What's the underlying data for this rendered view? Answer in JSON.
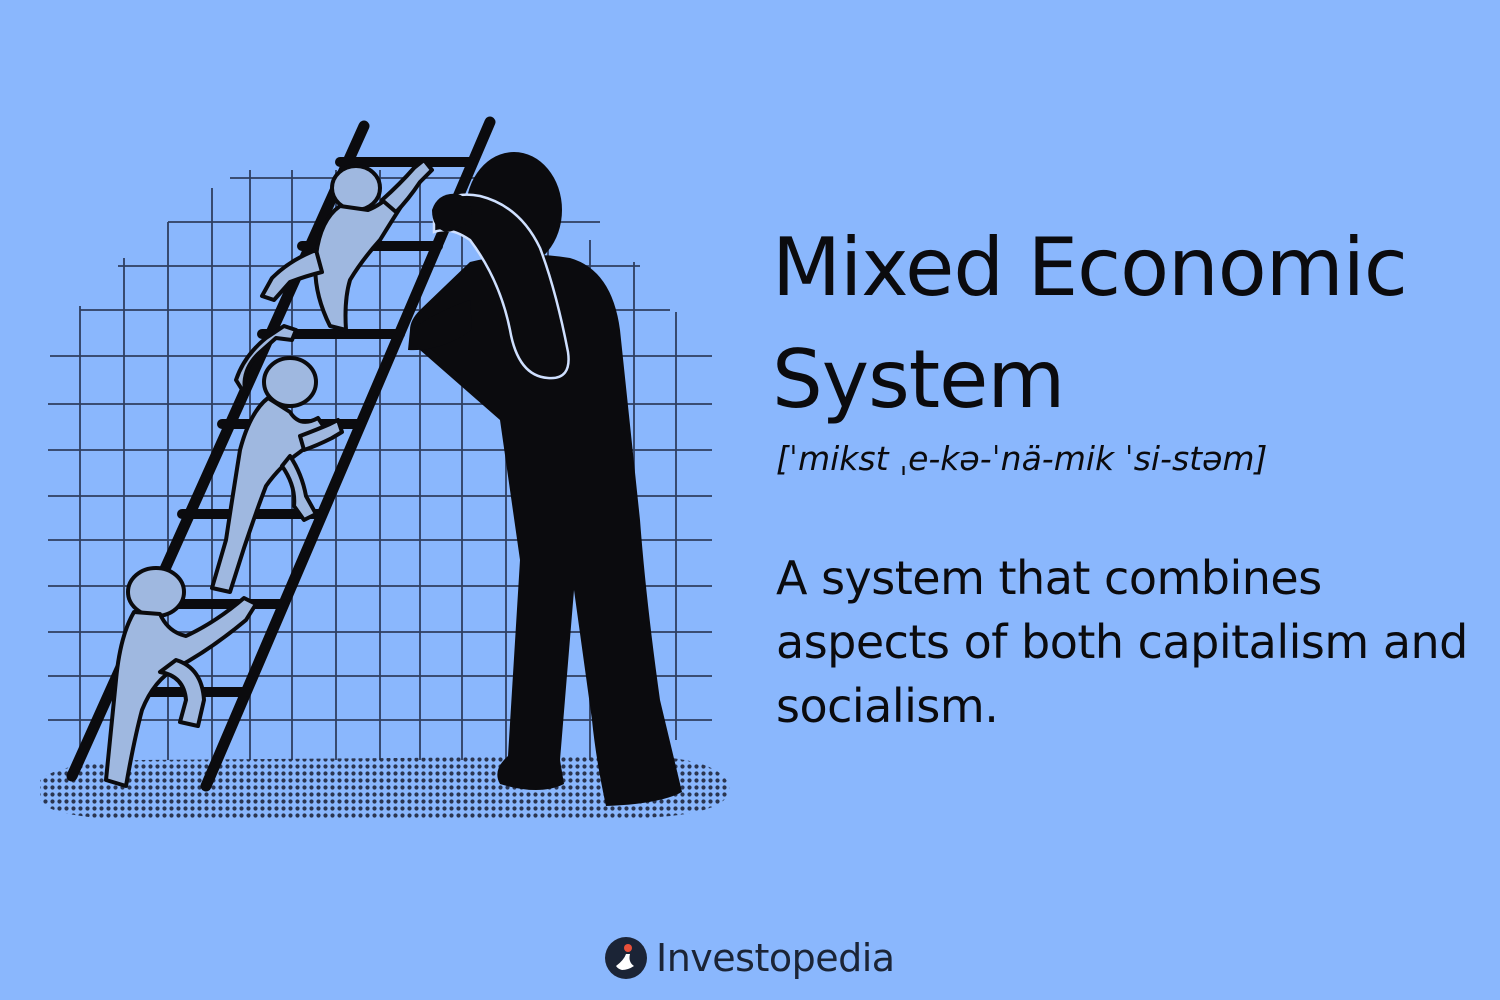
{
  "term": {
    "title": "Mixed Economic System",
    "pronunciation": "[ˈmikst ˌe-kə-ˈnä-mik ˈsi-stəm]",
    "definition": "A system that combines aspects of both capitalism and socialism."
  },
  "brand": {
    "name": "Investopedia",
    "icon": "investopedia-logo-icon"
  },
  "colors": {
    "background": "#8ab7fd",
    "text": "#0b0b0e",
    "figure_dark": "#0b0b0e",
    "figure_light": "#9fb8e0",
    "logo_accent": "#e8503a"
  },
  "illustration": {
    "icon": "ladder-climbers-illustration"
  }
}
